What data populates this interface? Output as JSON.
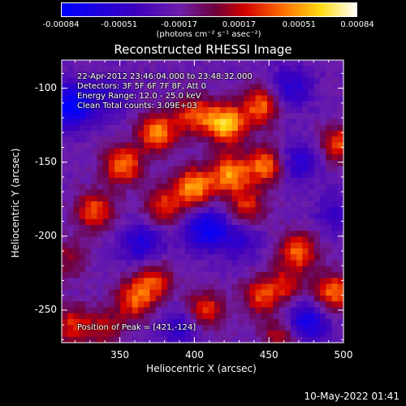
{
  "chart_data": {
    "type": "heatmap",
    "title": "Reconstructed RHESSI Image",
    "xlabel": "Heliocentric X (arcsec)",
    "ylabel": "Heliocentric Y (arcsec)",
    "xlim": [
      311,
      500
    ],
    "ylim": [
      -272,
      -81
    ],
    "xticks": [
      350,
      400,
      450,
      500
    ],
    "yticks": [
      -100,
      -150,
      -200,
      -250
    ],
    "colorbar": {
      "range": [
        -0.00084,
        0.00084
      ],
      "tick_values": [
        -0.00084,
        -0.00051,
        -0.00017,
        0.00017,
        0.00051,
        0.00084
      ],
      "tick_labels": [
        "-0.00084",
        "-0.00051",
        "-0.00017",
        "0.00017",
        "0.00051",
        "0.00084"
      ],
      "unit": "(photons cm⁻² s⁻¹ asec⁻²)"
    },
    "annotations": [
      "22-Apr-2012 23:46:04.000 to 23:48:32.000",
      "Detectors: 3F 5F 6F 7F 8F, Att 0",
      "Energy Range: 12.0 - 25.0 keV",
      "Clean    Total counts: 3.09E+03"
    ],
    "peak_label": "Position of Peak = [421,-124]",
    "peak": [
      421,
      -124
    ],
    "sources": [
      {
        "x": 421,
        "y": -124,
        "v": 0.00084
      },
      {
        "x": 375,
        "y": -130,
        "v": 0.00068
      },
      {
        "x": 400,
        "y": -118,
        "v": 0.00055
      },
      {
        "x": 445,
        "y": -112,
        "v": 0.0006
      },
      {
        "x": 352,
        "y": -152,
        "v": 0.00065
      },
      {
        "x": 400,
        "y": -167,
        "v": 0.00072
      },
      {
        "x": 424,
        "y": -158,
        "v": 0.0007
      },
      {
        "x": 448,
        "y": -152,
        "v": 0.00062
      },
      {
        "x": 380,
        "y": -180,
        "v": 0.0005
      },
      {
        "x": 333,
        "y": -183,
        "v": 0.00055
      },
      {
        "x": 435,
        "y": -180,
        "v": 0.00045
      },
      {
        "x": 470,
        "y": -210,
        "v": 0.00058
      },
      {
        "x": 498,
        "y": -138,
        "v": 0.00052
      },
      {
        "x": 493,
        "y": -238,
        "v": 0.0006
      },
      {
        "x": 360,
        "y": -243,
        "v": 0.00055
      },
      {
        "x": 373,
        "y": -230,
        "v": 0.00048
      },
      {
        "x": 407,
        "y": -250,
        "v": 0.00052
      },
      {
        "x": 445,
        "y": -240,
        "v": 0.0005
      },
      {
        "x": 462,
        "y": -233,
        "v": 0.00035
      },
      {
        "x": 340,
        "y": -262,
        "v": 0.00035
      },
      {
        "x": 458,
        "y": -268,
        "v": 0.0004
      },
      {
        "x": 318,
        "y": -260,
        "v": 0.00045
      },
      {
        "x": 316,
        "y": -215,
        "v": 0.0003
      }
    ],
    "sinks": [
      {
        "x": 318,
        "y": -112,
        "v": -0.00084
      },
      {
        "x": 408,
        "y": -195,
        "v": -0.0007
      },
      {
        "x": 365,
        "y": -205,
        "v": -0.0005
      },
      {
        "x": 470,
        "y": -150,
        "v": -0.00045
      },
      {
        "x": 465,
        "y": -100,
        "v": -0.00045
      },
      {
        "x": 475,
        "y": -258,
        "v": -0.00065
      },
      {
        "x": 392,
        "y": -262,
        "v": -0.0004
      },
      {
        "x": 430,
        "y": -203,
        "v": -0.00035
      },
      {
        "x": 343,
        "y": -105,
        "v": -0.0003
      },
      {
        "x": 495,
        "y": -185,
        "v": -0.0003
      }
    ],
    "background": -0.0002
  },
  "timestamp": "10-May-2022 01:41"
}
